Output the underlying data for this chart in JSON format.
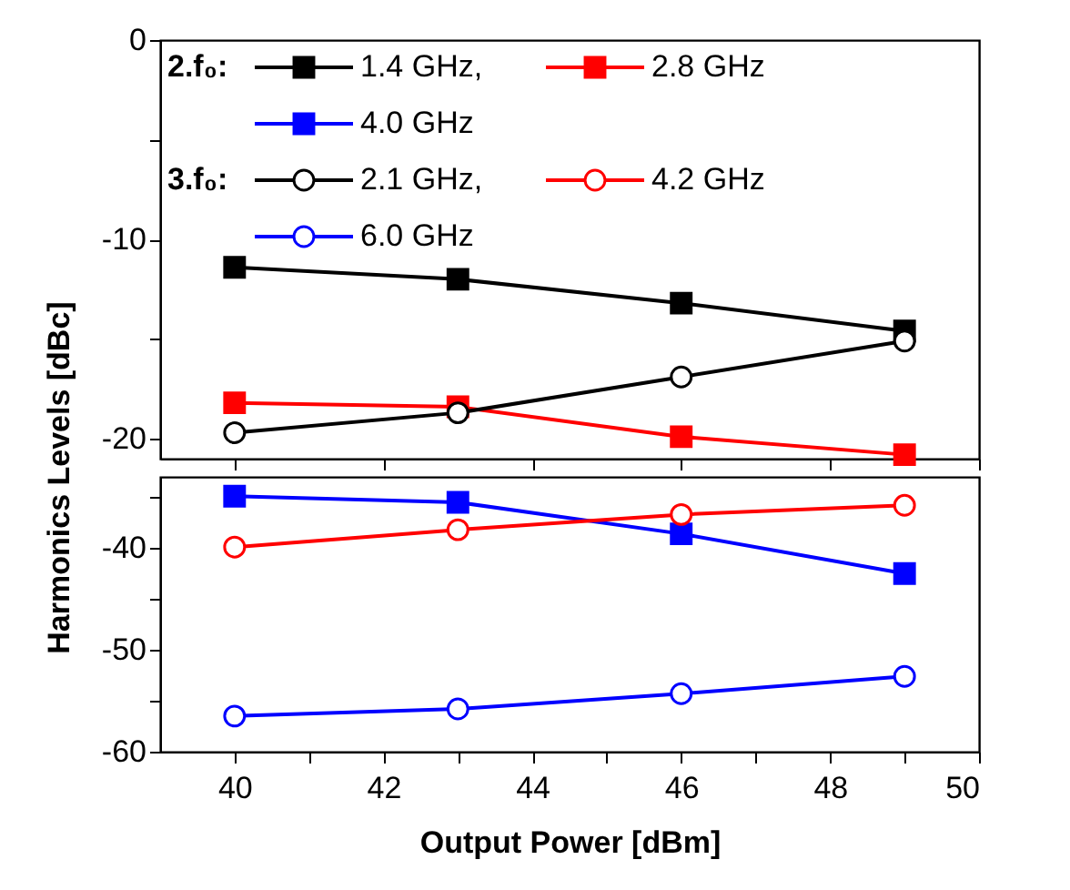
{
  "chart_data": [
    {
      "type": "line",
      "ylabel": "Harmonics Levels [dBc]",
      "xlim": [
        39,
        50
      ],
      "xticks": [
        40,
        42,
        44,
        46,
        48,
        50
      ],
      "ylim": [
        -21,
        0
      ],
      "yticks": [
        0,
        {
          "value": -5,
          "label": null
        },
        -10,
        {
          "value": -15,
          "label": null
        },
        -20
      ],
      "tick_labels": "y",
      "grid": false,
      "legend": "top left",
      "annotations": [
        "2.f₀:",
        "3.f₀:"
      ],
      "x": [
        40,
        43,
        46,
        49
      ],
      "series": [
        {
          "name": "1.4 GHz,",
          "color": "#000000",
          "marker": "square",
          "values": [
            -11.4,
            -12.0,
            -13.2,
            -14.6
          ]
        },
        {
          "name": "2.8 GHz",
          "color": "#ff0000",
          "marker": "square",
          "values": [
            -18.2,
            -18.4,
            -19.9,
            -20.8
          ]
        },
        {
          "name": "2.1 GHz,",
          "color": "#000000",
          "marker": "circle",
          "values": [
            -19.7,
            -18.7,
            -16.9,
            -15.1
          ]
        }
      ]
    },
    {
      "type": "line",
      "xlabel": "Output Power [dBm]",
      "xlim": [
        39,
        50
      ],
      "xticks": [
        40,
        {
          "value": 41,
          "label": null
        },
        42,
        {
          "value": 43,
          "label": null
        },
        44,
        {
          "value": 45,
          "label": null
        },
        46,
        {
          "value": 47,
          "label": null
        },
        48,
        {
          "value": 49,
          "label": null
        },
        50
      ],
      "ylim": [
        -60,
        -33
      ],
      "yticks": [
        {
          "value": -35,
          "label": null
        },
        -40,
        {
          "value": -45,
          "label": null
        },
        -50,
        {
          "value": -55,
          "label": null
        },
        -60
      ],
      "grid": false,
      "legend": "top left",
      "x": [
        40,
        43,
        46,
        49
      ],
      "series": [
        {
          "name": "4.0 GHz",
          "color": "#0000ff",
          "marker": "square",
          "values": [
            -34.9,
            -35.5,
            -38.6,
            -42.5
          ]
        },
        {
          "name": "4.2 GHz",
          "color": "#ff0000",
          "marker": "circle",
          "values": [
            -39.9,
            -38.2,
            -36.7,
            -35.8
          ]
        },
        {
          "name": "6.0 GHz",
          "color": "#0000ff",
          "marker": "circle",
          "values": [
            -56.5,
            -55.8,
            -54.3,
            -52.6
          ]
        }
      ]
    }
  ]
}
